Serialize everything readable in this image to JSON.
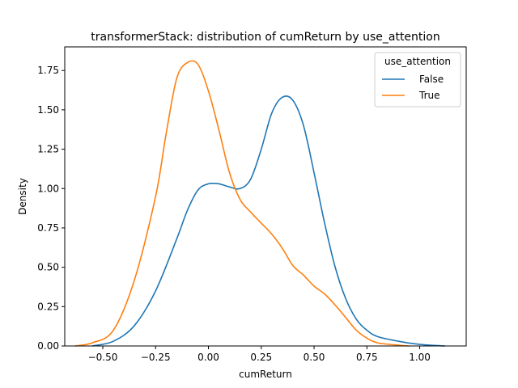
{
  "chart_data": {
    "type": "line",
    "title": "transformerStack: distribution of cumReturn by use_attention",
    "xlabel": "cumReturn",
    "ylabel": "Density",
    "xlim": [
      -0.68,
      1.22
    ],
    "ylim": [
      0,
      1.9
    ],
    "xticks": [
      -0.5,
      -0.25,
      0.0,
      0.25,
      0.5,
      0.75,
      1.0
    ],
    "xtick_labels": [
      "−0.50",
      "−0.25",
      "0.00",
      "0.25",
      "0.50",
      "0.75",
      "1.00"
    ],
    "yticks": [
      0.0,
      0.25,
      0.5,
      0.75,
      1.0,
      1.25,
      1.5,
      1.75
    ],
    "ytick_labels": [
      "0.00",
      "0.25",
      "0.50",
      "0.75",
      "1.00",
      "1.25",
      "1.50",
      "1.75"
    ],
    "grid": false,
    "legend": {
      "title": "use_attention",
      "placement": "top-right"
    },
    "series": [
      {
        "name": "False",
        "color": "#1f77b4",
        "x": [
          -0.55,
          -0.45,
          -0.35,
          -0.25,
          -0.15,
          -0.1,
          -0.05,
          0.0,
          0.05,
          0.1,
          0.15,
          0.2,
          0.25,
          0.3,
          0.35,
          0.4,
          0.45,
          0.5,
          0.55,
          0.6,
          0.65,
          0.7,
          0.75,
          0.8,
          0.9,
          1.0,
          1.12
        ],
        "y": [
          0.0,
          0.03,
          0.13,
          0.35,
          0.68,
          0.86,
          0.99,
          1.03,
          1.03,
          1.01,
          1.0,
          1.06,
          1.25,
          1.48,
          1.58,
          1.56,
          1.4,
          1.1,
          0.78,
          0.5,
          0.3,
          0.17,
          0.1,
          0.06,
          0.03,
          0.01,
          0.0
        ]
      },
      {
        "name": "True",
        "color": "#ff7f0e",
        "x": [
          -0.63,
          -0.55,
          -0.45,
          -0.35,
          -0.25,
          -0.2,
          -0.15,
          -0.1,
          -0.05,
          0.0,
          0.05,
          0.1,
          0.15,
          0.2,
          0.25,
          0.3,
          0.35,
          0.4,
          0.45,
          0.5,
          0.55,
          0.6,
          0.65,
          0.7,
          0.75,
          0.8,
          0.9,
          0.95
        ],
        "y": [
          0.0,
          0.02,
          0.1,
          0.42,
          0.95,
          1.35,
          1.7,
          1.8,
          1.79,
          1.62,
          1.37,
          1.1,
          0.93,
          0.85,
          0.78,
          0.71,
          0.62,
          0.51,
          0.45,
          0.38,
          0.33,
          0.26,
          0.18,
          0.1,
          0.05,
          0.02,
          0.005,
          0.0
        ]
      }
    ]
  }
}
